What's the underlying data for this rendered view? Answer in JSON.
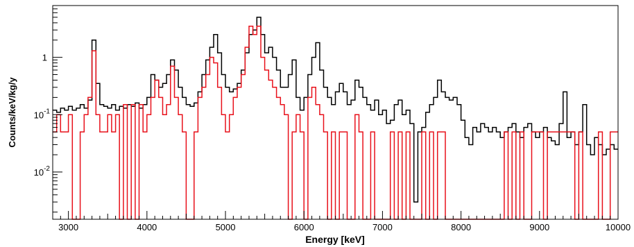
{
  "chart_data": {
    "type": "line",
    "step": true,
    "title": "",
    "xlabel": "Energy [keV]",
    "ylabel": "Counts/keV/kg/y",
    "xlim": [
      2800,
      10000
    ],
    "ylim": [
      0.0015,
      8
    ],
    "yscale": "log",
    "x_ticks": [
      3000,
      4000,
      5000,
      6000,
      7000,
      8000,
      9000,
      10000
    ],
    "y_ticks": [
      {
        "value": 0.01,
        "base": "10",
        "exp": "-2"
      },
      {
        "value": 0.1,
        "base": "10",
        "exp": "-1"
      },
      {
        "value": 1,
        "base": "1",
        "exp": ""
      }
    ],
    "colors": {
      "series_black": "#000000",
      "series_red": "#e8101a",
      "frame": "#000000"
    },
    "series": [
      {
        "color": "#000000",
        "x": [
          2800,
          2850,
          2900,
          2950,
          3000,
          3050,
          3100,
          3150,
          3200,
          3250,
          3300,
          3350,
          3400,
          3450,
          3500,
          3550,
          3600,
          3650,
          3700,
          3750,
          3800,
          3850,
          3900,
          3950,
          4000,
          4050,
          4100,
          4150,
          4200,
          4250,
          4300,
          4350,
          4400,
          4450,
          4500,
          4550,
          4600,
          4650,
          4700,
          4750,
          4800,
          4850,
          4900,
          4950,
          5000,
          5050,
          5100,
          5150,
          5200,
          5250,
          5300,
          5350,
          5400,
          5450,
          5500,
          5550,
          5600,
          5650,
          5700,
          5750,
          5800,
          5850,
          5900,
          5950,
          6000,
          6050,
          6100,
          6150,
          6200,
          6250,
          6300,
          6350,
          6400,
          6450,
          6500,
          6550,
          6600,
          6650,
          6700,
          6750,
          6800,
          6850,
          6900,
          6950,
          7000,
          7050,
          7100,
          7150,
          7200,
          7250,
          7300,
          7350,
          7400,
          7450,
          7500,
          7550,
          7600,
          7650,
          7700,
          7750,
          7800,
          7850,
          7900,
          7950,
          8000,
          8050,
          8100,
          8150,
          8200,
          8250,
          8300,
          8350,
          8400,
          8450,
          8500,
          8550,
          8600,
          8650,
          8700,
          8750,
          8800,
          8850,
          8900,
          8950,
          9000,
          9050,
          9100,
          9150,
          9200,
          9250,
          9300,
          9350,
          9400,
          9450,
          9500,
          9550,
          9600,
          9650,
          9700,
          9750,
          9800,
          9850,
          9900,
          9950
        ],
        "values": [
          0.12,
          0.11,
          0.13,
          0.12,
          0.14,
          0.12,
          0.13,
          0.15,
          0.13,
          0.18,
          2.0,
          0.35,
          0.15,
          0.14,
          0.13,
          0.15,
          0.12,
          0.14,
          0.13,
          0.15,
          0.14,
          0.16,
          0.13,
          0.15,
          0.2,
          0.5,
          0.4,
          0.3,
          0.35,
          0.5,
          0.9,
          0.6,
          0.3,
          0.2,
          0.15,
          0.14,
          0.16,
          0.25,
          0.5,
          0.9,
          1.5,
          2.5,
          1.2,
          0.5,
          0.3,
          0.25,
          0.28,
          0.35,
          0.6,
          1.2,
          2.5,
          3.0,
          5.0,
          2.5,
          1.2,
          1.5,
          1.0,
          0.6,
          0.3,
          0.3,
          0.5,
          0.9,
          0.2,
          0.12,
          0.2,
          0.5,
          1.0,
          1.8,
          0.6,
          0.3,
          0.2,
          0.15,
          0.25,
          0.35,
          0.25,
          0.15,
          0.18,
          0.4,
          0.3,
          0.2,
          0.15,
          0.12,
          0.18,
          0.1,
          0.12,
          0.07,
          0.08,
          0.15,
          0.18,
          0.1,
          0.12,
          0.07,
          0.003,
          0.05,
          0.06,
          0.11,
          0.15,
          0.2,
          0.4,
          0.25,
          0.2,
          0.18,
          0.2,
          0.15,
          0.08,
          0.04,
          0.03,
          0.06,
          0.05,
          0.07,
          0.06,
          0.05,
          0.06,
          0.05,
          0.04,
          0.05,
          0.06,
          0.07,
          0.05,
          0.04,
          0.06,
          0.07,
          0.05,
          0.04,
          0.05,
          0.06,
          0.04,
          0.035,
          0.03,
          0.07,
          0.25,
          0.04,
          0.05,
          0.03,
          0.05,
          0.15,
          0.03,
          0.02,
          0.04,
          0.03,
          0.02,
          0.025,
          0.03,
          0.025
        ]
      },
      {
        "color": "#e8101a",
        "x": [
          2800,
          2850,
          2900,
          2950,
          3000,
          3050,
          3100,
          3150,
          3200,
          3250,
          3300,
          3350,
          3400,
          3450,
          3500,
          3550,
          3600,
          3650,
          3700,
          3750,
          3800,
          3850,
          3900,
          3950,
          4000,
          4050,
          4100,
          4150,
          4200,
          4250,
          4300,
          4350,
          4400,
          4450,
          4500,
          4550,
          4600,
          4650,
          4700,
          4750,
          4800,
          4850,
          4900,
          4950,
          5000,
          5050,
          5100,
          5150,
          5200,
          5250,
          5300,
          5350,
          5400,
          5450,
          5500,
          5550,
          5600,
          5650,
          5700,
          5750,
          5800,
          5850,
          5900,
          5950,
          6000,
          6050,
          6100,
          6150,
          6200,
          6250,
          6300,
          6350,
          6400,
          6450,
          6500,
          6550,
          6600,
          6650,
          6700,
          6750,
          6800,
          6850,
          6900,
          6950,
          7000,
          7050,
          7100,
          7150,
          7200,
          7250,
          7300,
          7350,
          7400,
          7450,
          7500,
          7550,
          7600,
          7650,
          7700,
          7750,
          7800,
          7850,
          7900,
          7950,
          8000,
          8050,
          8100,
          8150,
          8200,
          8250,
          8300,
          8350,
          8400,
          8450,
          8500,
          8550,
          8600,
          8650,
          8700,
          8750,
          8800,
          8850,
          8900,
          8950,
          9000,
          9050,
          9100,
          9150,
          9200,
          9250,
          9300,
          9350,
          9400,
          9450,
          9500,
          9550,
          9600,
          9650,
          9700,
          9750,
          9800,
          9850,
          9900,
          9950
        ],
        "values": [
          0.05,
          0.1,
          0.05,
          0.05,
          0.1,
          0.001,
          0.001,
          0.05,
          0.1,
          0.2,
          1.3,
          0.1,
          0.05,
          0.05,
          0.1,
          0.05,
          0.1,
          0.001,
          0.15,
          0.001,
          0.15,
          0.001,
          0.15,
          0.05,
          0.1,
          0.2,
          0.4,
          0.2,
          0.1,
          0.15,
          0.7,
          0.2,
          0.1,
          0.05,
          0.001,
          0.001,
          0.05,
          0.2,
          0.3,
          0.5,
          1.0,
          0.8,
          0.3,
          0.1,
          0.05,
          0.1,
          0.2,
          0.3,
          0.5,
          1.5,
          3.5,
          2.5,
          3.5,
          1.0,
          0.6,
          0.4,
          0.3,
          0.2,
          0.15,
          0.1,
          0.001,
          0.05,
          0.1,
          0.05,
          0.001,
          0.2,
          0.3,
          0.15,
          0.1,
          0.05,
          0.001,
          0.05,
          0.001,
          0.05,
          0.05,
          0.001,
          0.001,
          0.1,
          0.05,
          0.001,
          0.001,
          0.05,
          0.001,
          0.001,
          0.001,
          0.001,
          0.05,
          0.001,
          0.05,
          0.001,
          0.05,
          0.001,
          0.001,
          0.001,
          0.05,
          0.001,
          0.05,
          0.001,
          0.05,
          0.05,
          0.001,
          0.001,
          0.001,
          0.001,
          0.001,
          0.001,
          0.001,
          0.001,
          0.001,
          0.001,
          0.001,
          0.001,
          0.001,
          0.001,
          0.001,
          0.05,
          0.001,
          0.05,
          0.001,
          0.05,
          0.001,
          0.001,
          0.05,
          0.05,
          0.05,
          0.001,
          0.05,
          0.05,
          0.05,
          0.05,
          0.05,
          0.05,
          0.05,
          0.001,
          0.05,
          0.001,
          0.001,
          0.001,
          0.001,
          0.05,
          0.001,
          0.001,
          0.05,
          0.05
        ]
      }
    ]
  }
}
